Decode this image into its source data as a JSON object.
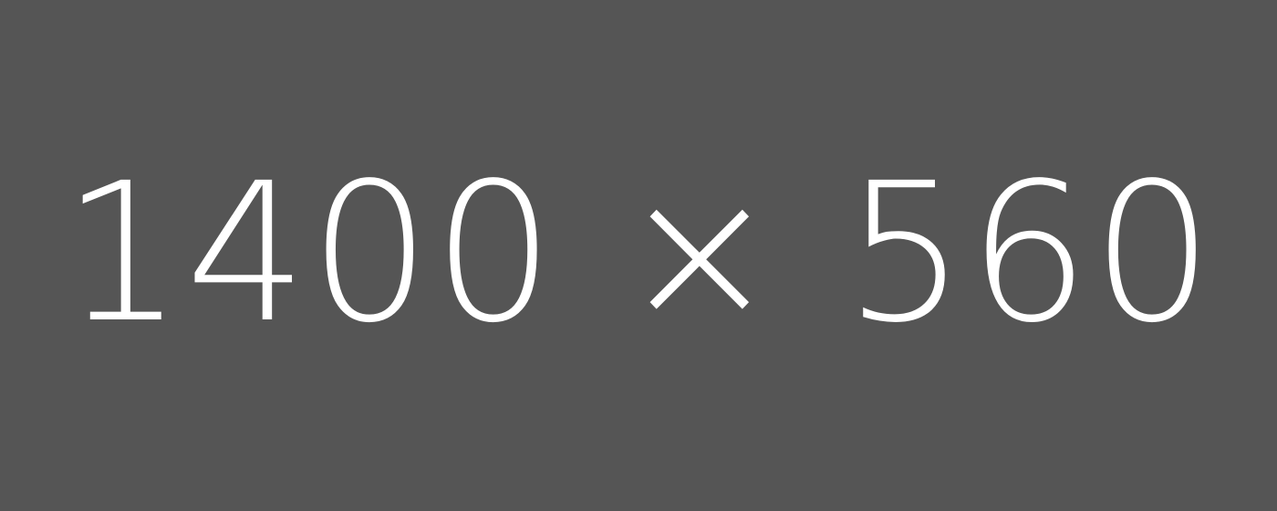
{
  "placeholder": {
    "label": "1400 × 560",
    "background_color": "#555555",
    "text_color": "#ffffff"
  }
}
